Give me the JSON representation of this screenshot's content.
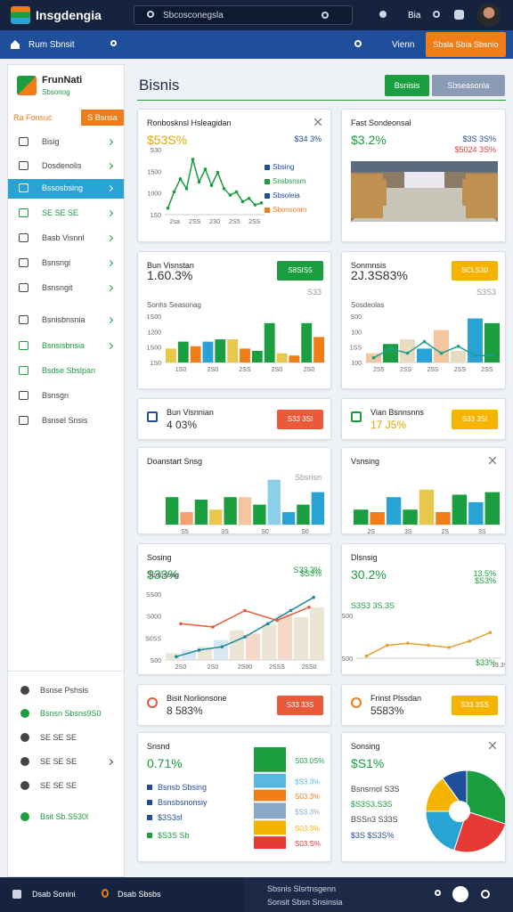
{
  "topbar": {
    "brand": "Insgdengia",
    "search": "Sbcosconegsla",
    "user": "Bia"
  },
  "navbar": {
    "title": "Rum Sbnsit",
    "link": "Vienn",
    "button": "Sbsla Sbia Sbsnio"
  },
  "sidebar": {
    "brand": "FrunNati",
    "subtitle": "Sbsonog",
    "tabs": [
      "Ra Fonsuc",
      "S Bsnsa"
    ],
    "items": [
      {
        "label": "Bisig",
        "color": "#444"
      },
      {
        "label": "Dosdenolis",
        "color": "#444"
      },
      {
        "label": "Bssosbsing",
        "color": "#444",
        "active": true
      },
      {
        "label": "SE SE SE",
        "color": "#1a9e3f"
      },
      {
        "label": "Basb Visnnl",
        "color": "#444"
      },
      {
        "label": "Bsnsngi",
        "color": "#444"
      },
      {
        "label": "Bsnsngit",
        "color": "#444"
      },
      {
        "label": "Bsnisbnsnia",
        "color": "#444"
      },
      {
        "label": "Bsnsisbnsia",
        "color": "#1a9e3f"
      },
      {
        "label": "Bsdse Sbslpan",
        "color": "#1a9e3f"
      },
      {
        "label": "Bsnsgn",
        "color": "#444"
      },
      {
        "label": "Bsnsel Snsis",
        "color": "#444"
      }
    ],
    "footer_items": [
      {
        "label": "Bsnse Pshsis",
        "color": "#444"
      },
      {
        "label": "Bsnsn Sbsns9S0",
        "color": "#1a9e3f"
      },
      {
        "label": "SE SE SE",
        "color": "#444"
      },
      {
        "label": "SE SE SE",
        "color": "#444"
      },
      {
        "label": "SE SE SE",
        "color": "#444"
      },
      {
        "label": "Bsit Sb.S530l",
        "color": "#1a9e3f"
      }
    ]
  },
  "main": {
    "title": "Bisnis",
    "buttons": [
      {
        "text": "Bsnisis",
        "color": "#1a9e3f"
      },
      {
        "text": "Sbseasonla",
        "color": "#8a9bb5"
      }
    ],
    "cards": [
      {
        "title": "Ronbosknsl Hsleagidan",
        "close": true,
        "value": "$53S%",
        "value_color": "#e0a800",
        "side": "$34 3%",
        "side_color": "#1f4e9a",
        "legend": [
          {
            "name": "Sbsing",
            "color": "#1f4e9a"
          },
          {
            "name": "Snsbsnsm",
            "color": "#1a9e3f"
          },
          {
            "name": "Sbsoleia",
            "color": "#1f4e9a"
          },
          {
            "name": "Sbonsonm",
            "color": "#f07d18"
          }
        ],
        "chart": {
          "type": "line",
          "color": "#1a9e3f",
          "values": [
            10,
            35,
            55,
            40,
            85,
            50,
            70,
            45,
            65,
            40,
            30,
            35,
            20,
            25,
            15,
            18
          ],
          "ylim": [
            0,
            100
          ],
          "ylabels": [
            "S30",
            "1500",
            "1000",
            "1S0"
          ],
          "xlabels": [
            "2sa",
            "2SS",
            "230",
            "2S5",
            "2SS"
          ]
        }
      },
      {
        "title": "Fast Sondeonsal",
        "value": "$3.2%",
        "value_color": "#1a9e3f",
        "side": "$3S 3S%",
        "side_color": "#1f4e9a",
        "lines": [
          {
            "text": "$5024 3S%",
            "color": "#e53935",
            "align": "right"
          }
        ],
        "image": true
      },
      {
        "title": "Bun Visnstan",
        "value": "1.60.3%",
        "value_color": "#333",
        "badge": {
          "text": "S8SIS5",
          "color": "#1a9e3f"
        },
        "sub": "Sonhs Seasonag",
        "side": "S33",
        "side_color": "#999",
        "chart": {
          "type": "bar",
          "values": [
            30,
            45,
            35,
            45,
            50,
            50,
            30,
            25,
            85,
            20,
            15,
            85,
            55
          ],
          "colors": [
            "#e8c84a",
            "#1a9e3f",
            "#f07d18",
            "#29a3d4",
            "#1a9e3f",
            "#e8c84a",
            "#f07d18",
            "#1a9e3f",
            "#1a9e3f",
            "#e8c84a",
            "#f07d18",
            "#1a9e3f",
            "#f07d18"
          ],
          "ylim": [
            0,
            100
          ],
          "ylabels": [
            "1S00",
            "1200",
            "1S00",
            "1S0"
          ],
          "xlabels": [
            "1S0",
            "2S0",
            "2SS",
            "2S0",
            "2S0"
          ]
        }
      },
      {
        "title": "Sonmnsis",
        "value": "2J.3S83%",
        "value_color": "#333",
        "badge": {
          "text": "SCLS30",
          "color": "#f4b400"
        },
        "sub": "Sosdeolas",
        "side": "S3S3",
        "side_color": "#999",
        "chart": {
          "type": "combo",
          "values": [
            20,
            40,
            50,
            30,
            70,
            25,
            95,
            85
          ],
          "colors": [
            "#f4c6a0",
            "#1a9e3f",
            "#e8dcc0",
            "#29a3d4",
            "#f4c6a0",
            "#e8dcc0",
            "#29a3d4",
            "#1a9e3f"
          ],
          "line": [
            10,
            30,
            20,
            45,
            20,
            35,
            15,
            15
          ],
          "line_color": "#1a9e8f",
          "ylim": [
            0,
            100
          ],
          "ylabels": [
            "S00",
            "100",
            "1SS",
            "100"
          ],
          "xlabels": [
            "2S5",
            "2SS",
            "2SS",
            "2SS",
            "2SS"
          ]
        }
      },
      {
        "title": "Bun Visnnian",
        "value": "4 03%",
        "value_color": "#333",
        "badge": {
          "text": "S33 3SI",
          "color": "#e85a3a"
        },
        "small": true,
        "icon_color": "#1f4e9a"
      },
      {
        "title": "Vian Bsnnsnns",
        "value": "17 J5%",
        "value_color": "#e0a800",
        "badge": {
          "text": "S33 3SI",
          "color": "#f4b400"
        },
        "small": true
      },
      {
        "title": "Doanstart Snsg",
        "side": "Sbsnsn",
        "side_color": "#999",
        "chart": {
          "type": "bar",
          "values": [
            55,
            25,
            50,
            30,
            55,
            55,
            40,
            90,
            25,
            40,
            65
          ],
          "colors": [
            "#1a9e3f",
            "#f4a070",
            "#1a9e3f",
            "#e8c84a",
            "#1a9e3f",
            "#f4c6a0",
            "#1a9e3f",
            "#8ccfe8",
            "#29a3d4",
            "#1a9e3f",
            "#29a3d4"
          ],
          "ylim": [
            0,
            100
          ],
          "xlabels": [
            "S5",
            "3S",
            "S0",
            "S0"
          ]
        }
      },
      {
        "title": "Vsnsing",
        "close": true,
        "chart": {
          "type": "bar",
          "values": [
            30,
            25,
            55,
            30,
            70,
            25,
            60,
            45,
            65
          ],
          "colors": [
            "#1a9e3f",
            "#f07d18",
            "#29a3d4",
            "#1a9e3f",
            "#e8c84a",
            "#f07d18",
            "#1a9e3f",
            "#29a3d4",
            "#1a9e3f"
          ],
          "ylim": [
            0,
            100
          ],
          "xlabels": [
            "2S",
            "3S",
            "2S",
            "3S"
          ]
        }
      },
      {
        "title": "Sosing",
        "value": "$33%",
        "value_color": "#1a9e3f",
        "side": "$S3%",
        "side_color": "#1a9e3f",
        "sub": "Sbonsuag",
        "lines": [
          {
            "text": "S33.3%",
            "color": "#1a9e3f",
            "align": "right"
          }
        ],
        "chart": {
          "type": "combo",
          "values": [
            10,
            15,
            20,
            30,
            45,
            40,
            55,
            70,
            65,
            80
          ],
          "colors": [
            "#ece4d4",
            "#d8e8f4",
            "#ece4d4",
            "#d8e8f4",
            "#ece4d4",
            "#f4d8c8",
            "#ece4d4",
            "#f4d8c8",
            "#ece4d4",
            "#ece4d4"
          ],
          "line": [
            5,
            15,
            20,
            35,
            55,
            75,
            95
          ],
          "line_color": "#1a8aa0",
          "line2": [
            55,
            50,
            75,
            60,
            80
          ],
          "line2_color": "#e85a3a",
          "ylim": [
            0,
            100
          ],
          "ylabels": [
            "SS00",
            "S000",
            "S0SS",
            "S00"
          ],
          "xlabels": [
            "2S0",
            "2S0",
            "2S00",
            "2SSS",
            "2SS0"
          ]
        }
      },
      {
        "title": "Dlsnsig",
        "value": "30.2%",
        "value_color": "#1a9e3f",
        "side": "13.5%",
        "side_color": "#1a9e3f",
        "lines": [
          {
            "text": "S3S3 3S.3S",
            "color": "#1a9e3f",
            "align": "left"
          },
          {
            "text": "$S3%",
            "color": "#1a9e3f",
            "align": "right"
          },
          {
            "text": "$33%",
            "color": "#1a9e3f",
            "align": "right"
          }
        ],
        "chart": {
          "type": "line",
          "color": "#e8a030",
          "values": [
            5,
            30,
            35,
            30,
            25,
            40,
            60
          ],
          "ylim": [
            0,
            100
          ],
          "ylabels": [
            "S00",
            "S00"
          ],
          "xlabels": [
            "13.3%"
          ]
        }
      },
      {
        "title": "Bisit Norlionsone",
        "value": "8 583%",
        "value_color": "#333",
        "badge": {
          "text": "S33 33S",
          "color": "#e85a3a"
        },
        "small": true,
        "icon_color": "#e85a3a"
      },
      {
        "title": "Frinst Plssdan",
        "value": "5583%",
        "value_color": "#333",
        "badge": {
          "text": "S33 3SS",
          "color": "#f4b400"
        },
        "small": true,
        "icon_color": "#f07d18"
      },
      {
        "title": "Snsnd",
        "value": "0.71%",
        "value_color": "#1a9e3f",
        "lines": [
          {
            "text": "Bsnsb Sbsing",
            "color": "#1f4e9a",
            "align": "left"
          },
          {
            "text": "Bsnsbsnonsiy",
            "color": "#1f4e9a",
            "align": "left"
          },
          {
            "text": "$3S3sl",
            "color": "#1f4e9a",
            "align": "left"
          },
          {
            "text": "$S3S Sb",
            "color": "#1a9e3f",
            "align": "left"
          }
        ],
        "chart": {
          "type": "blocks",
          "values": [
            30,
            18,
            15,
            20,
            18,
            16
          ],
          "colors": [
            "#1a9e3f",
            "#5ab8e0",
            "#f07d18",
            "#8aa8c8",
            "#f4b400",
            "#e53935"
          ],
          "value_labels": [
            "S03.0S%",
            "$S3.3%",
            "S03.3%",
            "$S3.3%",
            "S03.3%",
            "S03.S%"
          ]
        }
      },
      {
        "title": "Sonsing",
        "value": "$S1%",
        "value_color": "#1a9e3f",
        "close": true,
        "lines": [
          {
            "text": "Bsnsrnol S3S",
            "color": "#444",
            "align": "left"
          },
          {
            "text": "$S3S3.S3S",
            "color": "#1a9e3f",
            "align": "left"
          },
          {
            "text": "BSSn3 S33S",
            "color": "#444",
            "align": "left"
          },
          {
            "text": "$3S $S3S%",
            "color": "#1f4e9a",
            "align": "left"
          }
        ],
        "chart": {
          "type": "pie",
          "values": [
            30,
            25,
            20,
            15,
            10
          ],
          "colors": [
            "#1a9e3f",
            "#e53935",
            "#29a3d4",
            "#f4b400",
            "#1f4e9a"
          ]
        }
      }
    ]
  },
  "footer": {
    "left": "Dsab Sonini",
    "middle_left": "Dsab Sbsbs",
    "center": "Sbsnis Slsrtnsgenn",
    "center2": "Sonsit Sbsn Snsinsia"
  }
}
